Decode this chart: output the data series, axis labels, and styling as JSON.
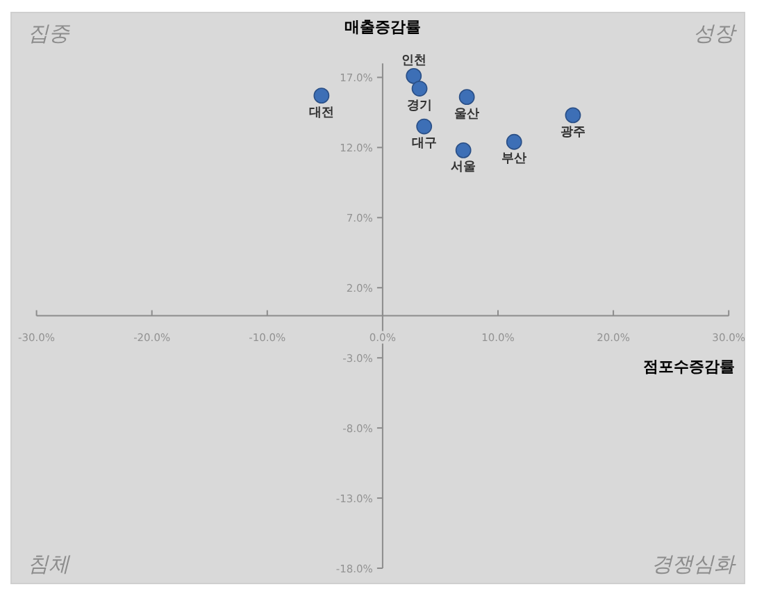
{
  "chart_data": {
    "type": "scatter",
    "xlabel": "점포수증감률",
    "ylabel": "매출증감률",
    "annotations": [
      "집중",
      "성장",
      "침체",
      "경쟁심화"
    ],
    "xlim": [
      -30,
      30
    ],
    "ylim": [
      -18,
      18
    ],
    "xticks": [
      {
        "value": -30,
        "label": "-30.0%"
      },
      {
        "value": -20,
        "label": "-20.0%"
      },
      {
        "value": -10,
        "label": "-10.0%"
      },
      {
        "value": 0,
        "label": "0.0%"
      },
      {
        "value": 10,
        "label": "10.0%"
      },
      {
        "value": 20,
        "label": "20.0%"
      },
      {
        "value": 30,
        "label": "30.0%"
      }
    ],
    "yticks": [
      {
        "value": -18,
        "label": "-18.0%"
      },
      {
        "value": -13,
        "label": "-13.0%"
      },
      {
        "value": -8,
        "label": "-8.0%"
      },
      {
        "value": -3,
        "label": "-3.0%"
      },
      {
        "value": 2,
        "label": "2.0%"
      },
      {
        "value": 7,
        "label": "7.0%"
      },
      {
        "value": 12,
        "label": "12.0%"
      },
      {
        "value": 17,
        "label": "17.0%"
      }
    ],
    "marker": "circle",
    "grid": false,
    "legend": false,
    "series": [
      {
        "name": "인천",
        "color": "#3d6fb6",
        "x": [
          2.7
        ],
        "values": [
          17.1
        ]
      },
      {
        "name": "경기",
        "color": "#3d6fb6",
        "x": [
          3.2
        ],
        "values": [
          16.2
        ]
      },
      {
        "name": "대전",
        "color": "#3d6fb6",
        "x": [
          -5.3
        ],
        "values": [
          15.7
        ]
      },
      {
        "name": "울산",
        "color": "#3d6fb6",
        "x": [
          7.3
        ],
        "values": [
          15.6
        ]
      },
      {
        "name": "광주",
        "color": "#3d6fb6",
        "x": [
          16.5
        ],
        "values": [
          14.3
        ]
      },
      {
        "name": "대구",
        "color": "#3d6fb6",
        "x": [
          3.6
        ],
        "values": [
          13.5
        ]
      },
      {
        "name": "부산",
        "color": "#3d6fb6",
        "x": [
          11.4
        ],
        "values": [
          12.4
        ]
      },
      {
        "name": "서울",
        "color": "#3d6fb6",
        "x": [
          7.0
        ],
        "values": [
          11.8
        ]
      }
    ]
  }
}
